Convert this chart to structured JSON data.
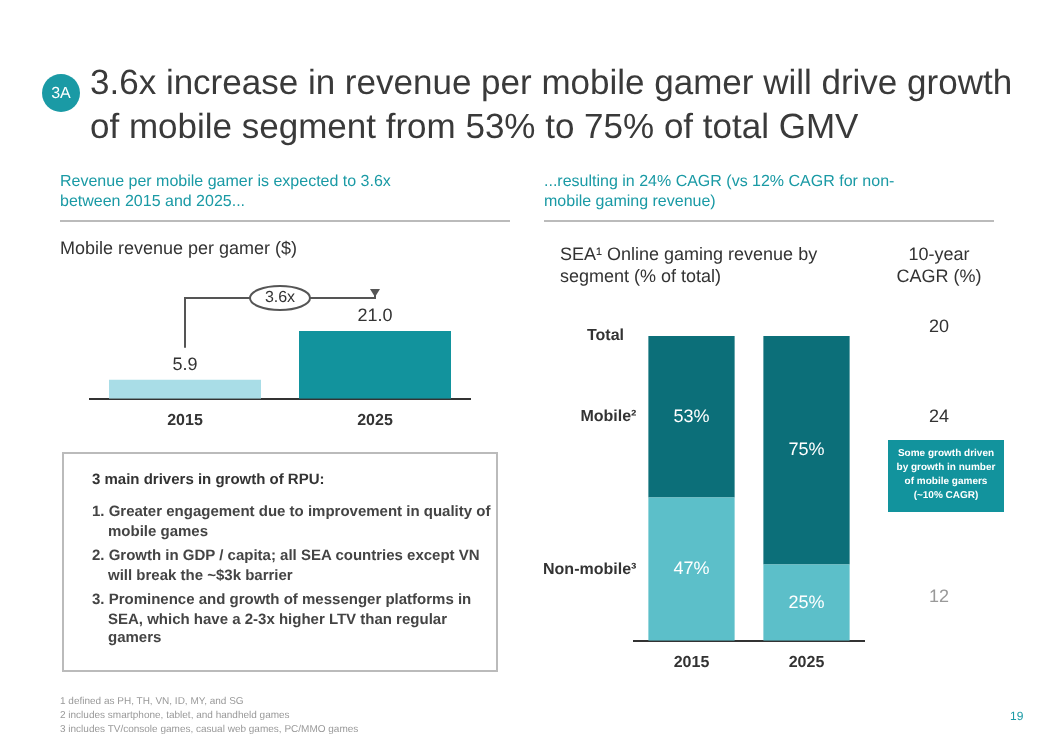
{
  "chart_data": [
    {
      "type": "other",
      "title": "3.6x increase in revenue per mobile gamer will drive growth of mobile segment from 53% to 75% of total GMV",
      "annotations": [
        "3A",
        "3 main drivers in growth of RPU:",
        "1. Greater engagement due to improvement in quality of mobile games",
        "2. Growth in GDP / capita; all SEA countries except VN will break the ~$3k barrier",
        "3. Prominence and growth of messenger platforms in SEA, which have a 2-3x higher LTV than regular gamers",
        "1 defined as PH, TH, VN, ID, MY, and SG",
        "2 includes smartphone, tablet, and handheld games",
        "3 includes TV/console games, casual web games, PC/MMO games",
        "19"
      ]
    },
    {
      "type": "bar",
      "subtitle": "Revenue per mobile gamer is expected to 3.6x between 2015 and 2025...",
      "title": "Mobile revenue per gamer ($)",
      "categories": [
        "2015",
        "2025"
      ],
      "values": [
        5.9,
        21.0
      ],
      "value_labels": [
        "5.9",
        "21.0"
      ],
      "colors": [
        "#a9dde7",
        "#12939d"
      ],
      "annotations": [
        "3.6x"
      ]
    },
    {
      "type": "bar",
      "stacked": true,
      "subtitle": "...resulting in 24% CAGR (vs 12% CAGR for non-mobile gaming revenue)",
      "title": "SEA¹ Online gaming revenue by segment (% of total)",
      "categories": [
        "2015",
        "2025"
      ],
      "series": [
        {
          "name": "Non-mobile³",
          "color": "#5cbfc9",
          "values": [
            47,
            25
          ],
          "value_labels": [
            "47%",
            "25%"
          ]
        },
        {
          "name": "Mobile²",
          "color": "#0c6f79",
          "values": [
            53,
            75
          ],
          "value_labels": [
            "53%",
            "75%"
          ]
        }
      ],
      "annotations": [
        "Total",
        "10-year CAGR (%)",
        "20",
        "24",
        "12",
        "Some growth driven by growth in number of mobile gamers (~10% CAGR)"
      ]
    }
  ]
}
